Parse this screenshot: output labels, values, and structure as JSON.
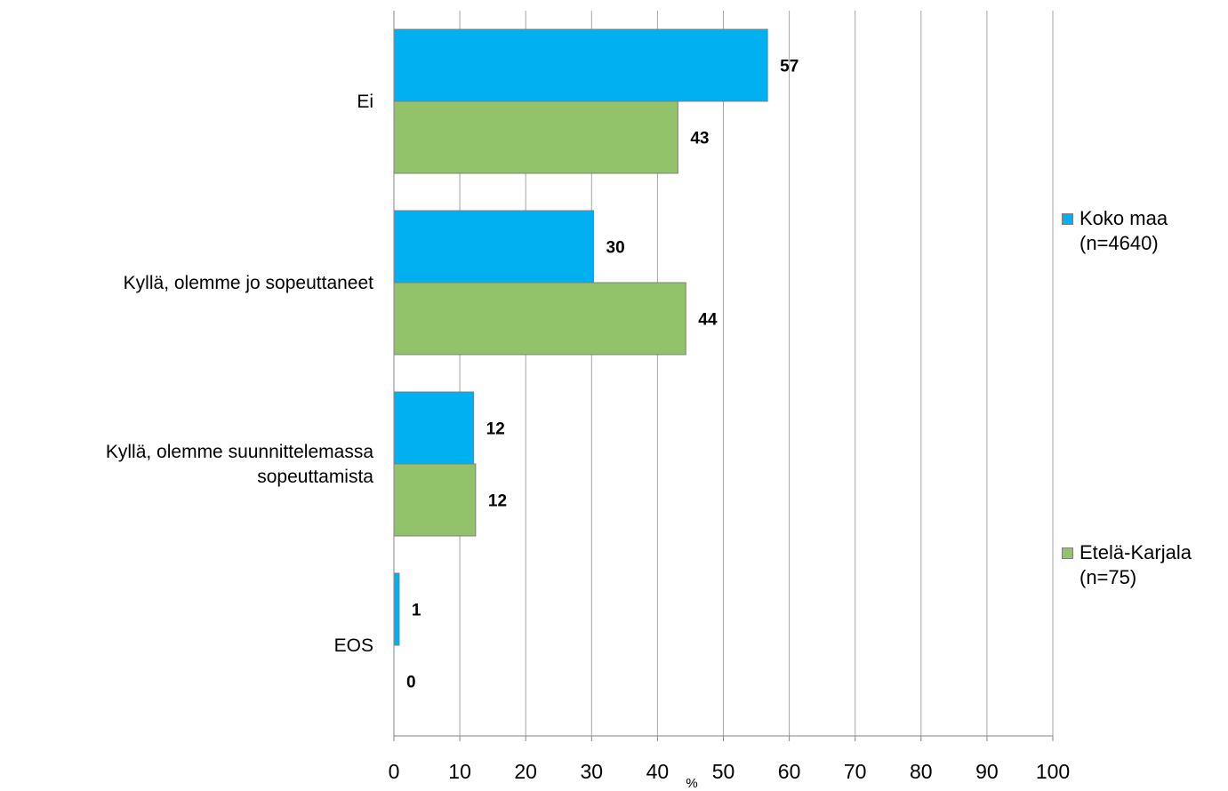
{
  "chart_data": {
    "type": "bar",
    "orientation": "horizontal",
    "categories": [
      [
        "Ei"
      ],
      [
        "Kyllä, olemme jo sopeuttaneet"
      ],
      [
        "Kyllä, olemme suunnittelemassa",
        "sopeuttamista"
      ],
      [
        "EOS"
      ]
    ],
    "series": [
      {
        "name": "Koko maa",
        "note": "(n=4640)",
        "color": "#00b0f0",
        "values": [
          57,
          30,
          12,
          1
        ],
        "exact": [
          56.7,
          30.3,
          12.1,
          0.8
        ]
      },
      {
        "name": "Etelä-Karjala",
        "note": "(n=75)",
        "color": "#92c36b",
        "values": [
          43,
          44,
          12,
          0
        ],
        "exact": [
          43.1,
          44.3,
          12.4,
          0
        ]
      }
    ],
    "xlim": [
      0,
      100
    ],
    "xticks": [
      0,
      10,
      20,
      30,
      40,
      50,
      60,
      70,
      80,
      90,
      100
    ],
    "xlabel": "%",
    "grid": true,
    "legend_position": "right"
  }
}
